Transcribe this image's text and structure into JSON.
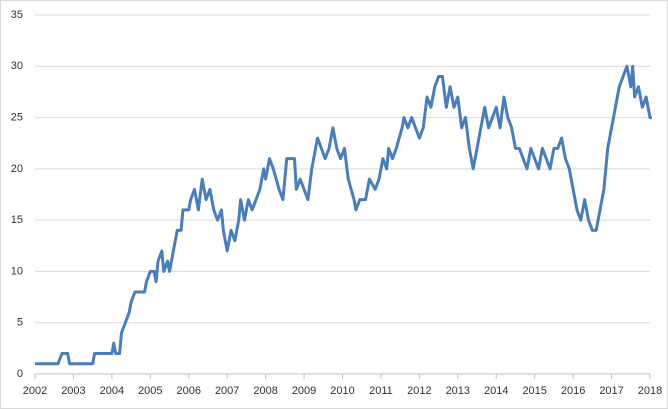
{
  "chart_data": {
    "type": "line",
    "x": [
      2002.0,
      2002.6,
      2002.7,
      2002.85,
      2002.9,
      2003.5,
      2003.55,
      2004.0,
      2004.05,
      2004.1,
      2004.2,
      2004.25,
      2004.35,
      2004.45,
      2004.5,
      2004.6,
      2004.85,
      2004.9,
      2005.0,
      2005.1,
      2005.15,
      2005.2,
      2005.3,
      2005.35,
      2005.45,
      2005.5,
      2005.6,
      2005.7,
      2005.8,
      2005.85,
      2006.0,
      2006.05,
      2006.15,
      2006.25,
      2006.35,
      2006.45,
      2006.55,
      2006.65,
      2006.75,
      2006.85,
      2006.9,
      2007.0,
      2007.05,
      2007.1,
      2007.2,
      2007.3,
      2007.35,
      2007.45,
      2007.55,
      2007.65,
      2007.75,
      2007.85,
      2007.95,
      2008.0,
      2008.1,
      2008.2,
      2008.35,
      2008.45,
      2008.55,
      2008.75,
      2008.8,
      2008.9,
      2009.0,
      2009.1,
      2009.2,
      2009.35,
      2009.45,
      2009.55,
      2009.65,
      2009.75,
      2009.85,
      2009.95,
      2010.05,
      2010.15,
      2010.3,
      2010.35,
      2010.45,
      2010.6,
      2010.7,
      2010.85,
      2010.95,
      2011.05,
      2011.15,
      2011.2,
      2011.3,
      2011.4,
      2011.55,
      2011.6,
      2011.7,
      2011.8,
      2011.9,
      2012.0,
      2012.1,
      2012.2,
      2012.3,
      2012.4,
      2012.5,
      2012.6,
      2012.7,
      2012.8,
      2012.9,
      2013.0,
      2013.1,
      2013.2,
      2013.3,
      2013.4,
      2013.5,
      2013.6,
      2013.7,
      2013.8,
      2013.9,
      2014.0,
      2014.1,
      2014.2,
      2014.3,
      2014.4,
      2014.5,
      2014.6,
      2014.7,
      2014.8,
      2014.9,
      2015.0,
      2015.1,
      2015.2,
      2015.3,
      2015.4,
      2015.5,
      2015.6,
      2015.7,
      2015.8,
      2015.9,
      2016.0,
      2016.1,
      2016.2,
      2016.3,
      2016.4,
      2016.5,
      2016.6,
      2016.7,
      2016.8,
      2016.9,
      2017.0,
      2017.1,
      2017.2,
      2017.3,
      2017.4,
      2017.5,
      2017.55,
      2017.6,
      2017.7,
      2017.8,
      2017.9,
      2018.0,
      2018.05
    ],
    "series": [
      {
        "color": "#4a7ebb",
        "values": [
          1,
          1,
          2,
          2,
          1,
          1,
          2,
          2,
          3,
          2,
          2,
          4,
          5,
          6,
          7,
          8,
          8,
          9,
          10,
          10,
          9,
          11,
          12,
          10,
          11,
          10,
          12,
          14,
          14,
          16,
          16,
          17,
          18,
          16,
          19,
          17,
          18,
          16,
          15,
          16,
          14,
          12,
          13,
          14,
          13,
          15,
          17,
          15,
          17,
          16,
          17,
          18,
          20,
          19,
          21,
          20,
          18,
          17,
          21,
          21,
          18,
          19,
          18,
          17,
          20,
          23,
          22,
          21,
          22,
          24,
          22,
          21,
          22,
          19,
          17,
          16,
          17,
          17,
          19,
          18,
          19,
          21,
          20,
          22,
          21,
          22,
          24,
          25,
          24,
          25,
          24,
          23,
          24,
          27,
          26,
          28,
          29,
          29,
          26,
          28,
          26,
          27,
          24,
          25,
          22,
          20,
          22,
          24,
          26,
          24,
          25,
          26,
          24,
          27,
          25,
          24,
          22,
          22,
          21,
          20,
          22,
          21,
          20,
          22,
          21,
          20,
          22,
          22,
          23,
          21,
          20,
          18,
          16,
          15,
          17,
          15,
          14,
          14,
          16,
          18,
          22,
          24,
          26,
          28,
          29,
          30,
          28,
          30,
          27,
          28,
          26,
          27,
          25,
          25
        ]
      }
    ],
    "xlim": [
      2002,
      2018
    ],
    "xticks": [
      2002,
      2003,
      2004,
      2005,
      2006,
      2007,
      2008,
      2009,
      2010,
      2011,
      2012,
      2013,
      2014,
      2015,
      2016,
      2017,
      2018
    ],
    "ylim": [
      0,
      35
    ],
    "yticks": [
      0,
      5,
      10,
      15,
      20,
      25,
      30,
      35
    ],
    "grid": true
  }
}
